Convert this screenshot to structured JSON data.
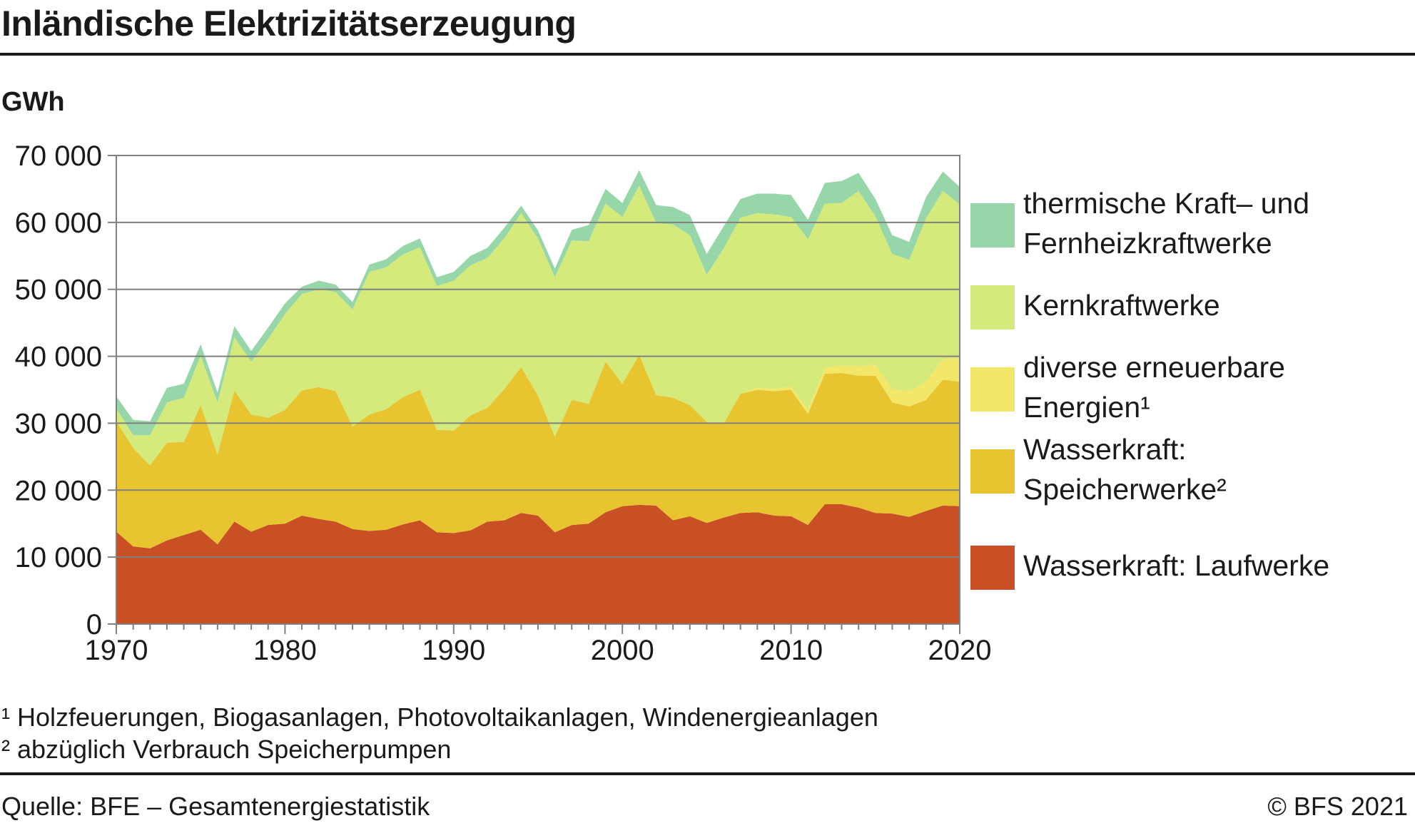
{
  "title": "Inländische Elektrizitätserzeugung",
  "unit_label": "GWh",
  "footnotes": [
    "¹ Holzfeuerungen, Biogasanlagen, Photovoltaikanlagen, Windenergieanlagen",
    "² abzüglich Verbrauch Speicherpumpen"
  ],
  "source": "Quelle: BFE – Gesamtenergiestatistik",
  "copyright": "© BFS 2021",
  "colors": {
    "laufwerke": "#c95024",
    "speicher": "#e8c431",
    "erneuerbar": "#f3e76a",
    "kern": "#d4ea7a",
    "thermisch": "#97d6a8",
    "grid": "#808080",
    "axis": "#808080"
  },
  "legend": [
    {
      "key": "thermisch",
      "label": "thermische Kraft– und\nFernheizkraftwerke"
    },
    {
      "key": "kern",
      "label": "Kernkraftwerke"
    },
    {
      "key": "erneuerbar",
      "label": "diverse erneuerbare\nEnergien¹"
    },
    {
      "key": "speicher",
      "label": "Wasserkraft:\nSpeicherwerke²"
    },
    {
      "key": "laufwerke",
      "label": "Wasserkraft: Laufwerke"
    }
  ],
  "chart_data": {
    "type": "area",
    "stacked": true,
    "ylabel": "GWh",
    "ylim": [
      0,
      70000
    ],
    "yticks": [
      0,
      10000,
      20000,
      30000,
      40000,
      50000,
      60000,
      70000
    ],
    "ytick_labels": [
      "0",
      "10 000",
      "20 000",
      "30 000",
      "40 000",
      "50 000",
      "60 000",
      "70 000"
    ],
    "xlim": [
      1970,
      2020
    ],
    "xticks": [
      1970,
      1980,
      1990,
      2000,
      2010,
      2020
    ],
    "x": [
      1970,
      1971,
      1972,
      1973,
      1974,
      1975,
      1976,
      1977,
      1978,
      1979,
      1980,
      1981,
      1982,
      1983,
      1984,
      1985,
      1986,
      1987,
      1988,
      1989,
      1990,
      1991,
      1992,
      1993,
      1994,
      1995,
      1996,
      1997,
      1998,
      1999,
      2000,
      2001,
      2002,
      2003,
      2004,
      2005,
      2006,
      2007,
      2008,
      2009,
      2010,
      2011,
      2012,
      2013,
      2014,
      2015,
      2016,
      2017,
      2018,
      2019,
      2020
    ],
    "grid": true,
    "series": [
      {
        "key": "laufwerke",
        "name": "Wasserkraft: Laufwerke",
        "values": [
          13800,
          11600,
          11300,
          12500,
          13300,
          14100,
          11900,
          15300,
          13800,
          14800,
          15000,
          16200,
          15700,
          15300,
          14200,
          13900,
          14100,
          14900,
          15500,
          13700,
          13600,
          14000,
          15300,
          15500,
          16600,
          16200,
          13700,
          14800,
          15000,
          16700,
          17600,
          17800,
          17700,
          15500,
          16100,
          15100,
          15900,
          16600,
          16700,
          16200,
          16100,
          14800,
          17900,
          17900,
          17400,
          16600,
          16500,
          16000,
          16900,
          17700,
          17600
        ]
      },
      {
        "key": "speicher",
        "name": "Wasserkraft: Speicherwerke²",
        "values": [
          16500,
          14700,
          12400,
          14600,
          13900,
          18600,
          13400,
          19600,
          17500,
          16000,
          17000,
          18700,
          19700,
          19500,
          15300,
          17400,
          18000,
          19000,
          19500,
          15300,
          15300,
          17200,
          17000,
          19600,
          21800,
          17900,
          14300,
          18700,
          17900,
          22500,
          18300,
          22400,
          16500,
          18300,
          16600,
          15100,
          14000,
          17800,
          18300,
          18600,
          18900,
          16600,
          19500,
          19600,
          19700,
          20500,
          16600,
          16500,
          16600,
          18800,
          18600
        ]
      },
      {
        "key": "erneuerbar",
        "name": "diverse erneuerbare Energien¹",
        "values": [
          0,
          0,
          0,
          0,
          0,
          0,
          0,
          0,
          0,
          0,
          0,
          0,
          0,
          0,
          0,
          0,
          0,
          0,
          0,
          0,
          0,
          0,
          0,
          0,
          0,
          0,
          0,
          0,
          0,
          0,
          0,
          0,
          0,
          0,
          0,
          0,
          0,
          0,
          300,
          300,
          500,
          600,
          900,
          1100,
          1400,
          1700,
          2000,
          2300,
          2700,
          3100,
          3500
        ]
      },
      {
        "key": "kern",
        "name": "Kernkraftwerke",
        "values": [
          1900,
          1900,
          4500,
          6000,
          6600,
          7400,
          7800,
          7900,
          7900,
          11800,
          14300,
          14400,
          14600,
          14800,
          17500,
          21300,
          21200,
          21300,
          21300,
          21500,
          22400,
          22400,
          22400,
          22500,
          23000,
          23500,
          23800,
          23800,
          24300,
          23600,
          24900,
          25300,
          25700,
          25900,
          25400,
          22000,
          26200,
          26300,
          26100,
          26100,
          25300,
          25500,
          24500,
          24300,
          26200,
          22100,
          20200,
          19600,
          24400,
          25100,
          23000
        ]
      },
      {
        "key": "thermisch",
        "name": "thermische Kraft– und Fernheizkraftwerke",
        "values": [
          1800,
          2300,
          2100,
          2200,
          2100,
          1700,
          1500,
          1700,
          1600,
          1700,
          1600,
          1100,
          1300,
          1100,
          1100,
          1100,
          1200,
          1300,
          1300,
          1300,
          1300,
          1400,
          1500,
          1600,
          1100,
          1200,
          1300,
          1600,
          2400,
          2200,
          2100,
          2300,
          2700,
          2600,
          3000,
          3100,
          3300,
          2800,
          2900,
          3100,
          3300,
          2900,
          3100,
          3300,
          2700,
          2600,
          2800,
          2700,
          3200,
          2900,
          2600
        ]
      }
    ]
  }
}
